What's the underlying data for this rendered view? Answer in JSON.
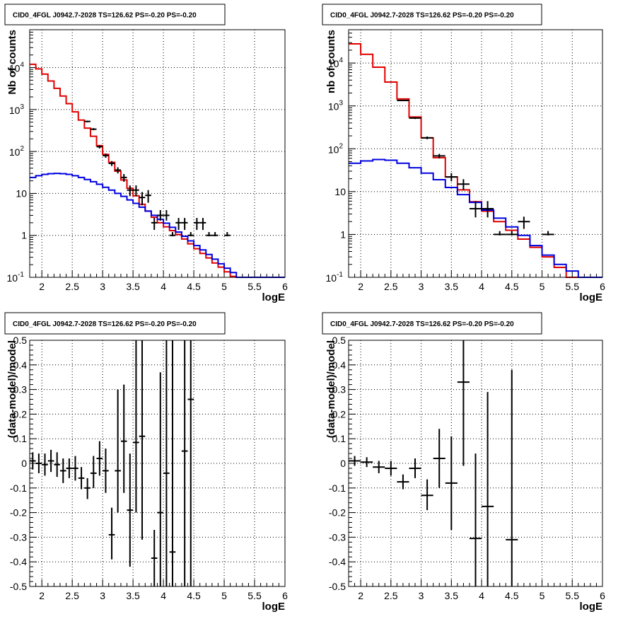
{
  "colors": {
    "data": "#000000",
    "total_model": "#e00000",
    "component": "#0000e0",
    "grid": "#000000"
  },
  "chart_data": [
    {
      "type": "line",
      "title": "CID0_4FGL J0942.7-2028 TS=126.62 PS=-0.20 PS=-0.20",
      "xlabel": "logE",
      "ylabel": "Nb of counts",
      "y_scale": "log",
      "xlim": [
        1.8,
        6
      ],
      "ylim": [
        0.1,
        80000
      ],
      "grid": true,
      "x_ticks": [
        "2",
        "2.5",
        "3",
        "3.5",
        "4",
        "4.5",
        "5",
        "5.5",
        "6"
      ],
      "y_ticks": [
        "10^-1",
        "1",
        "10",
        "10^2",
        "10^3",
        "10^4"
      ],
      "bin_width": 0.1,
      "series": [
        {
          "name": "",
          "color": "#e00000",
          "style": "step",
          "x": [
            1.85,
            1.95,
            2.05,
            2.15,
            2.25,
            2.35,
            2.45,
            2.55,
            2.65,
            2.75,
            2.85,
            2.95,
            3.05,
            3.15,
            3.25,
            3.35,
            3.45,
            3.55,
            3.65,
            3.75,
            3.85,
            3.95,
            4.05,
            4.15,
            4.25,
            4.35,
            4.45,
            4.55,
            4.65,
            4.75,
            4.85,
            4.95,
            5.05,
            5.15,
            5.25,
            5.35,
            5.45,
            5.55,
            5.65,
            5.75,
            5.85,
            5.95
          ],
          "values": [
            12000,
            9300,
            7000,
            4800,
            3200,
            2100,
            1380,
            880,
            560,
            360,
            230,
            138,
            85,
            55,
            34,
            21,
            13.3,
            8.8,
            5.5,
            3.8,
            2.7,
            2.0,
            1.6,
            1.3,
            1.05,
            0.82,
            0.63,
            0.48,
            0.37,
            0.29,
            0.22,
            0.175,
            0.135,
            0.105,
            0.1,
            0.1,
            0.1,
            0.1,
            0.1,
            0.1,
            0.1,
            0.1
          ]
        },
        {
          "name": "",
          "color": "#0000e0",
          "style": "step",
          "x": [
            1.85,
            1.95,
            2.05,
            2.15,
            2.25,
            2.35,
            2.45,
            2.55,
            2.65,
            2.75,
            2.85,
            2.95,
            3.05,
            3.15,
            3.25,
            3.35,
            3.45,
            3.55,
            3.65,
            3.75,
            3.85,
            3.95,
            4.05,
            4.15,
            4.25,
            4.35,
            4.45,
            4.55,
            4.65,
            4.75,
            4.85,
            4.95,
            5.05,
            5.15,
            5.25,
            5.35,
            5.45,
            5.55,
            5.65,
            5.75,
            5.85,
            5.95
          ],
          "values": [
            24,
            26.5,
            28.5,
            29.5,
            30,
            29.5,
            28.5,
            26.5,
            24,
            21.5,
            19,
            16.5,
            14,
            12,
            10,
            8.5,
            7,
            5.8,
            4.7,
            3.8,
            3.0,
            2.4,
            1.95,
            1.55,
            1.2,
            0.95,
            0.74,
            0.57,
            0.45,
            0.35,
            0.27,
            0.21,
            0.165,
            0.13,
            0.1,
            0.1,
            0.1,
            0.1,
            0.1,
            0.1,
            0.1,
            0.1
          ]
        },
        {
          "name": "",
          "color": "#000000",
          "style": "errorbar",
          "x": [
            2.75,
            2.85,
            2.95,
            3.05,
            3.15,
            3.25,
            3.35,
            3.45,
            3.55,
            3.65,
            3.75,
            3.85,
            3.95,
            4.05,
            4.15,
            4.25,
            4.35,
            4.45,
            4.55,
            4.65,
            4.75,
            4.85,
            5.05
          ],
          "values": [
            520,
            340,
            130,
            80,
            52,
            36,
            24,
            12,
            12,
            8,
            9,
            2,
            3,
            3,
            1,
            2,
            2,
            1,
            2,
            2,
            1,
            1,
            1
          ],
          "err_low": [
            495,
            321,
            118,
            71,
            45,
            30,
            19,
            8.6,
            8.6,
            5.2,
            6,
            1.35,
            2.25,
            2.25,
            0.95,
            1.35,
            1.35,
            0.95,
            1.35,
            1.35,
            0.95,
            0.95,
            0.95
          ],
          "err_high": [
            540,
            360,
            141,
            89,
            59,
            42,
            29,
            15.5,
            15.5,
            10.8,
            12,
            2.6,
            4,
            4,
            1.2,
            2.6,
            2.6,
            1.2,
            2.6,
            2.6,
            1.2,
            1.2,
            1.2
          ]
        }
      ]
    },
    {
      "type": "line",
      "title": "CID0_4FGL J0942.7-2028 TS=126.62 PS=-0.20 PS=-0.20",
      "xlabel": "logE",
      "ylabel": "nb of counts",
      "y_scale": "log",
      "xlim": [
        1.8,
        6
      ],
      "ylim": [
        0.1,
        60000
      ],
      "grid": true,
      "x_ticks": [
        "2",
        "2.5",
        "3",
        "3.5",
        "4",
        "4.5",
        "5",
        "5.5",
        "6"
      ],
      "y_ticks": [
        "10^-1",
        "1",
        "10",
        "10^2",
        "10^3",
        "10^4"
      ],
      "bin_width": 0.2,
      "series": [
        {
          "name": "",
          "color": "#e00000",
          "style": "step",
          "x": [
            1.9,
            2.1,
            2.3,
            2.5,
            2.7,
            2.9,
            3.1,
            3.3,
            3.5,
            3.7,
            3.9,
            4.1,
            4.3,
            4.5,
            4.7,
            4.9,
            5.1,
            5.3,
            5.5,
            5.7,
            5.9
          ],
          "values": [
            28000,
            16000,
            8000,
            3600,
            1450,
            550,
            180,
            62,
            22,
            11,
            5.8,
            3.5,
            2.0,
            1.25,
            0.78,
            0.5,
            0.3,
            0.17,
            0.1,
            0.1,
            0.1
          ]
        },
        {
          "name": "",
          "color": "#0000e0",
          "style": "step",
          "x": [
            1.9,
            2.1,
            2.3,
            2.5,
            2.7,
            2.9,
            3.1,
            3.3,
            3.5,
            3.7,
            3.9,
            4.1,
            4.3,
            4.5,
            4.7,
            4.9,
            5.1,
            5.3,
            5.5,
            5.7,
            5.9
          ],
          "values": [
            46,
            52,
            56,
            54,
            46,
            36,
            27,
            19,
            12.5,
            8.5,
            5.6,
            3.7,
            2.4,
            1.5,
            0.95,
            0.55,
            0.33,
            0.2,
            0.14,
            0.1,
            0.1
          ]
        },
        {
          "name": "",
          "color": "#000000",
          "style": "errorbar",
          "x": [
            2.7,
            2.9,
            3.1,
            3.3,
            3.5,
            3.7,
            3.9,
            4.1,
            4.3,
            4.5,
            4.7,
            5.1
          ],
          "values": [
            1340,
            520,
            180,
            68,
            22,
            15,
            4,
            4,
            1,
            1,
            2,
            1
          ],
          "err_low": [
            1300,
            495,
            167,
            60,
            17.5,
            11,
            2.5,
            2.5,
            0.95,
            0.95,
            1.35,
            0.95
          ],
          "err_high": [
            1380,
            545,
            193,
            76,
            27,
            19.5,
            6,
            6,
            1.2,
            1.2,
            2.6,
            1.2
          ]
        }
      ]
    },
    {
      "type": "scatter",
      "title": "CID0_4FGL J0942.7-2028 TS=126.62 PS=-0.20 PS=-0.20",
      "xlabel": "logE",
      "ylabel": "(data-model)/model",
      "xlim": [
        1.8,
        6
      ],
      "ylim": [
        -0.5,
        0.5
      ],
      "grid": true,
      "x_ticks": [
        "2",
        "2.5",
        "3",
        "3.5",
        "4",
        "4.5",
        "5",
        "5.5",
        "6"
      ],
      "y_ticks": [
        "-0.5",
        "-0.4",
        "-0.3",
        "-0.2",
        "-0.1",
        "0",
        "0.1",
        "0.2",
        "0.3",
        "0.4",
        "0.5"
      ],
      "bin_width": 0.1,
      "series": [
        {
          "name": "",
          "color": "#000000",
          "style": "errorbar",
          "x": [
            1.85,
            1.95,
            2.05,
            2.15,
            2.25,
            2.35,
            2.45,
            2.55,
            2.65,
            2.75,
            2.85,
            2.95,
            3.05,
            3.15,
            3.25,
            3.35,
            3.45,
            3.55,
            3.65,
            3.85,
            3.95,
            4.05,
            4.15,
            4.35,
            4.45
          ],
          "values": [
            0.01,
            0.0,
            -0.005,
            0.01,
            -0.005,
            -0.03,
            -0.02,
            -0.02,
            -0.06,
            -0.1,
            -0.04,
            0.02,
            -0.03,
            -0.29,
            -0.03,
            0.09,
            -0.19,
            0.085,
            0.11,
            -0.385,
            -0.2,
            -0.04,
            -0.36,
            0.05,
            0.26
          ],
          "err_low": [
            -0.025,
            -0.04,
            -0.05,
            -0.035,
            -0.055,
            -0.08,
            -0.06,
            -0.07,
            -0.105,
            -0.145,
            -0.1,
            -0.05,
            -0.12,
            -0.39,
            -0.2,
            -0.12,
            -0.42,
            -0.2,
            -0.31,
            -0.5,
            -0.5,
            -0.5,
            -0.5,
            -0.5,
            -0.5
          ],
          "err_high": [
            0.045,
            0.04,
            0.04,
            0.055,
            0.045,
            0.02,
            0.02,
            0.03,
            -0.015,
            -0.06,
            0.03,
            0.09,
            0.06,
            -0.18,
            0.3,
            0.32,
            0.04,
            0.5,
            0.5,
            -0.27,
            0.37,
            0.5,
            0.5,
            0.5,
            0.5
          ]
        }
      ]
    },
    {
      "type": "scatter",
      "title": "CID0_4FGL J0942.7-2028 TS=126.62 PS=-0.20 PS=-0.20",
      "xlabel": "logE",
      "ylabel": "(data-model)/model",
      "xlim": [
        1.8,
        6
      ],
      "ylim": [
        -0.5,
        0.5
      ],
      "grid": true,
      "x_ticks": [
        "2",
        "2.5",
        "3",
        "3.5",
        "4",
        "4.5",
        "5",
        "5.5",
        "6"
      ],
      "y_ticks": [
        "-0.5",
        "-0.4",
        "-0.3",
        "-0.2",
        "-0.1",
        "0",
        "0.1",
        "0.2",
        "0.3",
        "0.4",
        "0.5"
      ],
      "bin_width": 0.2,
      "series": [
        {
          "name": "",
          "color": "#000000",
          "style": "errorbar",
          "x": [
            1.9,
            2.1,
            2.3,
            2.5,
            2.7,
            2.9,
            3.1,
            3.3,
            3.5,
            3.7,
            3.9,
            4.1,
            4.5
          ],
          "values": [
            0.01,
            0.005,
            -0.015,
            -0.02,
            -0.075,
            -0.02,
            -0.13,
            0.02,
            -0.08,
            0.33,
            -0.305,
            -0.175,
            -0.31
          ],
          "err_low": [
            -0.01,
            -0.015,
            -0.04,
            -0.05,
            -0.105,
            -0.06,
            -0.19,
            -0.1,
            -0.27,
            -0.01,
            -0.5,
            -0.5,
            -0.5
          ],
          "err_high": [
            0.03,
            0.025,
            0.01,
            0.01,
            -0.045,
            0.02,
            -0.065,
            0.14,
            0.11,
            0.5,
            0.04,
            0.29,
            0.38
          ]
        }
      ]
    }
  ]
}
